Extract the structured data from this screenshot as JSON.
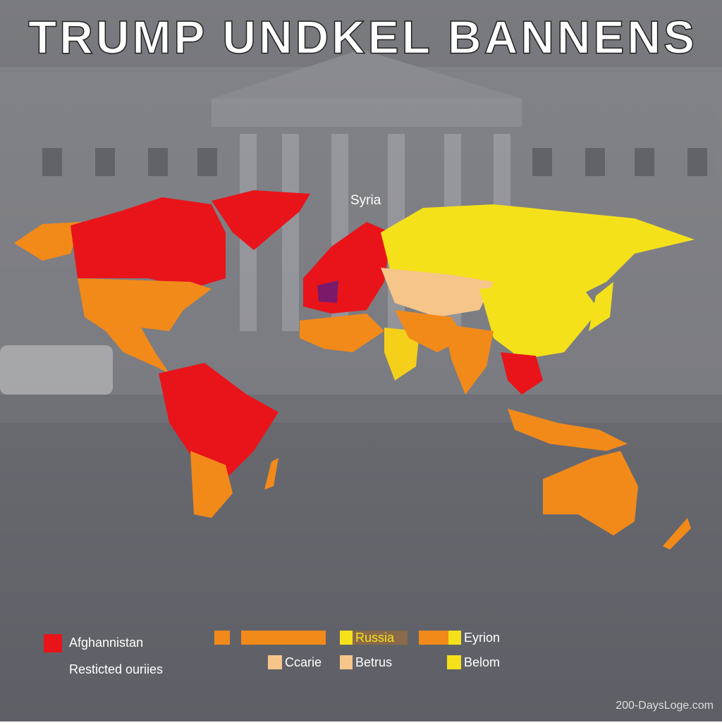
{
  "header": {
    "title": "TRUMP UNDKEL BANNENS"
  },
  "map": {
    "labels": [
      "Syria"
    ]
  },
  "legend": {
    "items": [
      {
        "label": "Afghannistan",
        "color": "#e8141a"
      },
      {
        "label": "Resticted ouriies",
        "color": "#5f6068"
      },
      {
        "label": "Russia",
        "color": "#f5e11a"
      },
      {
        "label": "Eyrion",
        "color": "#f5e11a"
      },
      {
        "label": "Ccarie",
        "color": "#f6c58a"
      },
      {
        "label": "Betrus",
        "color": "#f6c58a"
      },
      {
        "label": "Belom",
        "color": "#f5e11a"
      }
    ]
  },
  "footer": {
    "watermark": "200-DaysLoge.com"
  }
}
